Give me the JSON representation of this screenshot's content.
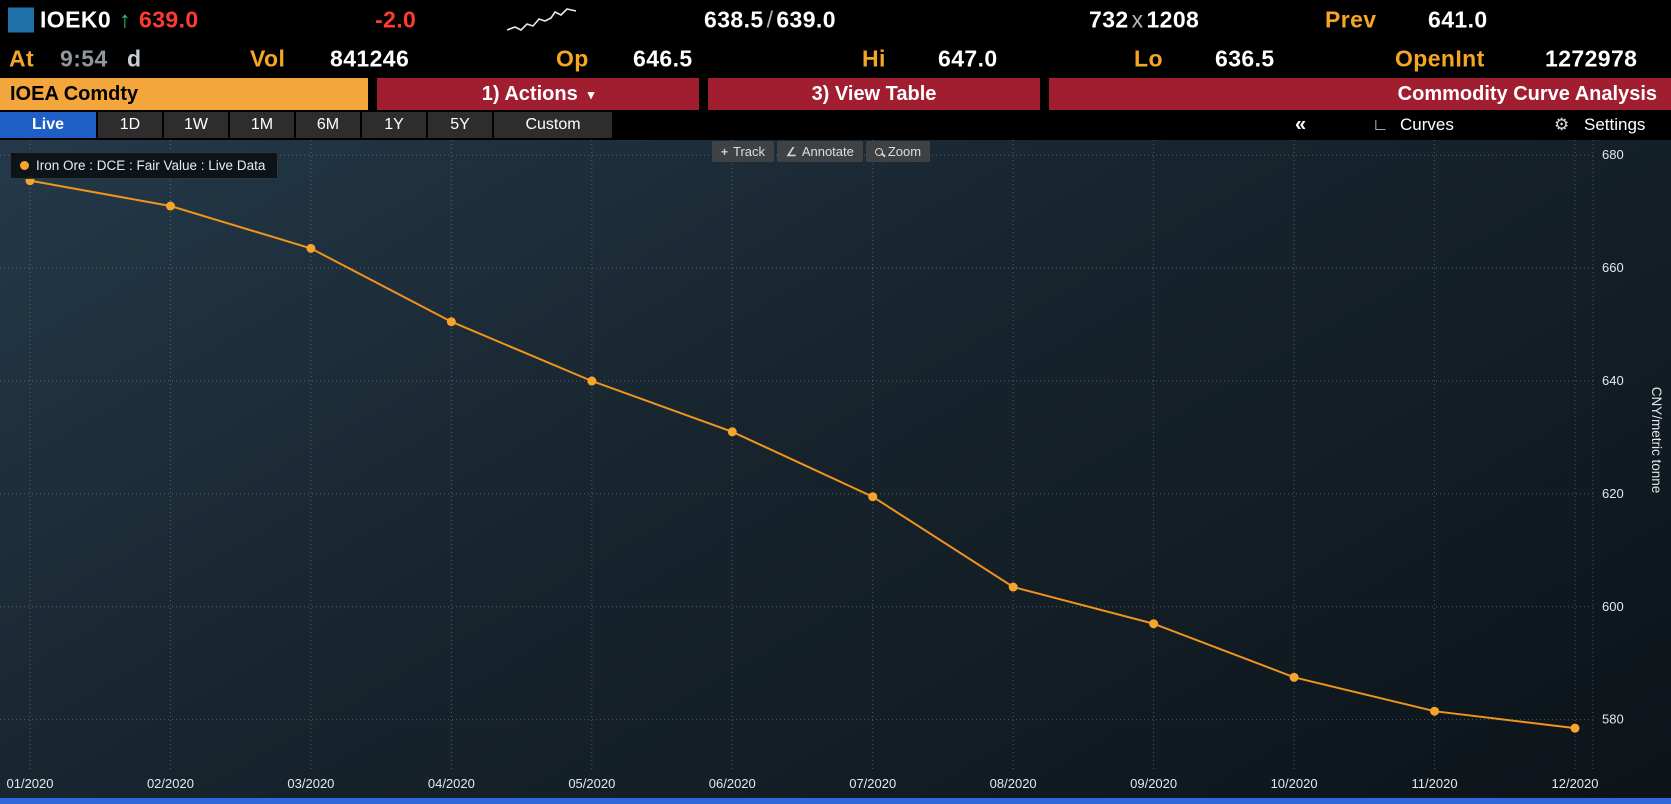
{
  "colors": {
    "amber": "#f5a623",
    "red_text": "#ff3b2f",
    "green_arrow": "#1fd07c",
    "menu_red": "#a11d30",
    "security_tab_bg": "#f3a63b",
    "active_tab_blue": "#1d5fc4",
    "line": "#f0941e",
    "bottom_strip_blue": "#2e68d9"
  },
  "icons": {
    "up_arrow": "↑",
    "caret_down": "▾",
    "collapse": "«",
    "curves": "∟",
    "settings_gear": "⚙",
    "track": "+",
    "annotate": "∠"
  },
  "quote": {
    "ticker": "IOEK0",
    "last": "639.0",
    "change": "-2.0",
    "bid": "638.5",
    "separator": "/",
    "ask": "639.0",
    "bid_size": "732",
    "size_separator": "x",
    "ask_size": "1208",
    "prev_label": "Prev",
    "prev_close": "641.0"
  },
  "stats": {
    "at_label": "At",
    "at_time": "9:54",
    "at_suffix": "d",
    "vol_label": "Vol",
    "volume": "841246",
    "open_label": "Op",
    "open": "646.5",
    "high_label": "Hi",
    "high": "647.0",
    "low_label": "Lo",
    "low": "636.5",
    "open_interest_label": "OpenInt",
    "open_interest": "1272978"
  },
  "menubar": {
    "security": "IOEA Comdty",
    "actions": "1) Actions",
    "view_table": "3) View Table",
    "app_title": "Commodity Curve Analysis"
  },
  "tabs": {
    "items": [
      "Live",
      "1D",
      "1W",
      "1M",
      "6M",
      "1Y",
      "5Y",
      "Custom"
    ],
    "active": "Live",
    "curves_label": "Curves",
    "settings_label": "Settings"
  },
  "chart": {
    "legend_label": "Iron Ore : DCE : Fair Value : Live Data",
    "tools": [
      "Track",
      "Annotate",
      "Zoom"
    ]
  },
  "chart_data": {
    "type": "line",
    "title": "Iron Ore : DCE : Fair Value : Live Data",
    "x": [
      "01/2020",
      "02/2020",
      "03/2020",
      "04/2020",
      "05/2020",
      "06/2020",
      "07/2020",
      "08/2020",
      "09/2020",
      "10/2020",
      "11/2020",
      "12/2020"
    ],
    "values": [
      675.5,
      671.0,
      663.5,
      650.5,
      640.0,
      631.0,
      619.5,
      603.5,
      597.0,
      587.5,
      581.5,
      578.5
    ],
    "ylabel": "CNY/metric tonne",
    "xlabel": "",
    "yticks": [
      580,
      600,
      620,
      640,
      660,
      680
    ],
    "ylim": [
      572.5,
      682.7
    ],
    "grid": "dotted",
    "legend_position": "top-left",
    "line_color": "#f0941e",
    "marker_color": "#f6a42c"
  }
}
